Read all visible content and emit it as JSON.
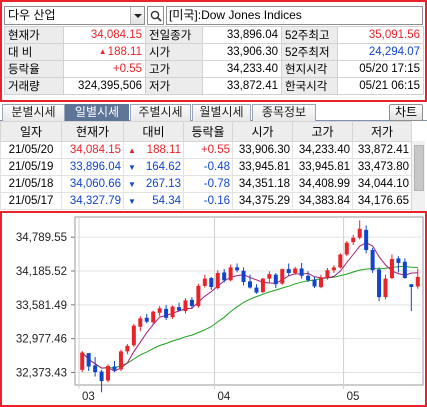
{
  "stock_name": "다우 산업",
  "market_label": "[미국]:Dow Jones Indices",
  "quote_rows": [
    [
      {
        "k": "현재가"
      },
      {
        "v": "34,084.15",
        "c": "red"
      },
      {
        "k": "전일종가"
      },
      {
        "v": "33,896.04"
      },
      {
        "k": "52주최고"
      },
      {
        "v": "35,091.56",
        "c": "red"
      }
    ],
    [
      {
        "k": "대 비"
      },
      {
        "v": "188.11",
        "c": "red",
        "arrow": "▲"
      },
      {
        "k": "시가"
      },
      {
        "v": "33,906.30"
      },
      {
        "k": "52주최저"
      },
      {
        "v": "24,294.07",
        "c": "blue"
      }
    ],
    [
      {
        "k": "등락율"
      },
      {
        "v": "+0.55",
        "c": "red"
      },
      {
        "k": "고가"
      },
      {
        "v": "34,233.40"
      },
      {
        "k": "현지시각"
      },
      {
        "v": "05/20 17:15"
      }
    ],
    [
      {
        "k": "거래량"
      },
      {
        "v": "324,395,506"
      },
      {
        "k": "저가"
      },
      {
        "v": "33,872.41"
      },
      {
        "k": "한국시각"
      },
      {
        "v": "05/21 06:15"
      }
    ]
  ],
  "tabs": [
    "분별시세",
    "일별시세",
    "주별시세",
    "월별시세",
    "종목정보"
  ],
  "active_tab": 1,
  "chart_button": "차트",
  "daily_headers": [
    "일자",
    "현재가",
    "대비",
    "등락율",
    "시가",
    "고가",
    "저가"
  ],
  "daily_rows": [
    {
      "date": "21/05/20",
      "price": "34,084.15",
      "arrow": "▲",
      "change": "188.11",
      "rate": "+0.55",
      "open": "33,906.30",
      "high": "34,233.40",
      "low": "33,872.41",
      "dir": "up"
    },
    {
      "date": "21/05/19",
      "price": "33,896.04",
      "arrow": "▼",
      "change": "164.62",
      "rate": "-0.48",
      "open": "33,945.81",
      "high": "33,945.81",
      "low": "33,473.80",
      "dir": "down"
    },
    {
      "date": "21/05/18",
      "price": "34,060.66",
      "arrow": "▼",
      "change": "267.13",
      "rate": "-0.78",
      "open": "34,351.18",
      "high": "34,408.99",
      "low": "34,044.10",
      "dir": "down"
    },
    {
      "date": "21/05/17",
      "price": "34,327.79",
      "arrow": "▼",
      "change": "54.34",
      "rate": "-0.16",
      "open": "34,375.29",
      "high": "34,383.84",
      "low": "34,176.65",
      "dir": "down"
    }
  ],
  "colors": {
    "up": "#e8232a",
    "down": "#1144cc",
    "ma_short": "#a0207a",
    "ma_long": "#19a119",
    "highlight": "#e8232a"
  },
  "chart_data": {
    "type": "candlestick",
    "y_ticks": [
      "34,789.55",
      "34,185.52",
      "33,581.49",
      "32,977.46",
      "32,373.43"
    ],
    "y_tick_values": [
      34789.55,
      34185.52,
      33581.49,
      32977.46,
      32373.43
    ],
    "ylim": [
      32150,
      35150
    ],
    "x_ticks": [
      "03",
      "04",
      "05"
    ],
    "x_tick_positions": [
      0,
      21,
      41
    ],
    "candles": [
      [
        32420,
        32760,
        32380,
        32730
      ],
      [
        32720,
        32700,
        32400,
        32480
      ],
      [
        32500,
        32650,
        32300,
        32380
      ],
      [
        32390,
        32420,
        32020,
        32220
      ],
      [
        32230,
        32520,
        32200,
        32490
      ],
      [
        32480,
        32580,
        32380,
        32420
      ],
      [
        32430,
        32780,
        32400,
        32750
      ],
      [
        32750,
        32880,
        32700,
        32850
      ],
      [
        32860,
        33240,
        32830,
        33210
      ],
      [
        33190,
        33380,
        33110,
        33340
      ],
      [
        33350,
        33420,
        33250,
        33280
      ],
      [
        33270,
        33480,
        33230,
        33460
      ],
      [
        33440,
        33560,
        33380,
        33520
      ],
      [
        33510,
        33580,
        33310,
        33350
      ],
      [
        33360,
        33570,
        33330,
        33550
      ],
      [
        33540,
        33620,
        33470,
        33480
      ],
      [
        33470,
        33700,
        33430,
        33660
      ],
      [
        33670,
        33720,
        33510,
        33560
      ],
      [
        33560,
        33960,
        33530,
        33920
      ],
      [
        33920,
        34120,
        33890,
        34050
      ],
      [
        34060,
        34080,
        33850,
        33900
      ],
      [
        33880,
        34200,
        33860,
        34150
      ],
      [
        34160,
        34220,
        33980,
        34020
      ],
      [
        34020,
        34300,
        34000,
        34250
      ],
      [
        34250,
        34320,
        34160,
        34200
      ],
      [
        34190,
        34250,
        33930,
        33990
      ],
      [
        34000,
        34120,
        33870,
        33890
      ],
      [
        33890,
        33950,
        33780,
        33800
      ],
      [
        33810,
        34060,
        33790,
        34050
      ],
      [
        34050,
        34180,
        33980,
        34130
      ],
      [
        34120,
        34150,
        33880,
        33950
      ],
      [
        33960,
        34230,
        33940,
        34220
      ],
      [
        34220,
        34320,
        34100,
        34150
      ],
      [
        34150,
        34260,
        34120,
        34230
      ],
      [
        34230,
        34330,
        34050,
        34100
      ],
      [
        34100,
        34180,
        33990,
        34020
      ],
      [
        34030,
        34080,
        33880,
        33910
      ],
      [
        33900,
        34120,
        33880,
        34070
      ],
      [
        34070,
        34240,
        34030,
        34200
      ],
      [
        34200,
        34290,
        34150,
        34250
      ],
      [
        34250,
        34500,
        34230,
        34480
      ],
      [
        34480,
        34720,
        34450,
        34690
      ],
      [
        34700,
        34830,
        34650,
        34780
      ],
      [
        34780,
        35090,
        34750,
        34940
      ],
      [
        34920,
        35000,
        34500,
        34560
      ],
      [
        34560,
        34600,
        34150,
        34200
      ],
      [
        34210,
        34250,
        33650,
        33720
      ],
      [
        33720,
        34120,
        33680,
        34050
      ],
      [
        34060,
        34480,
        34040,
        34400
      ],
      [
        34410,
        34450,
        34160,
        34330
      ],
      [
        34350,
        34410,
        34050,
        34060
      ],
      [
        33950,
        33950,
        33470,
        33900
      ],
      [
        33910,
        34230,
        33870,
        34080
      ]
    ]
  }
}
